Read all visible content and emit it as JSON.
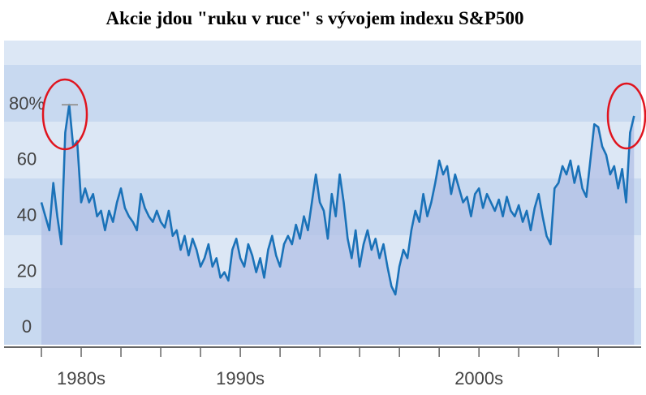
{
  "chart_data": {
    "type": "line",
    "title": "Akcie jdou \"ruku v ruce\" s vývojem indexu S&P500",
    "x": [
      1978,
      1978.2,
      1978.4,
      1978.6,
      1978.8,
      1979,
      1979.2,
      1979.4,
      1979.6,
      1979.8,
      1980,
      1980.2,
      1980.4,
      1980.6,
      1980.8,
      1981,
      1981.2,
      1981.4,
      1981.6,
      1981.8,
      1982,
      1982.2,
      1982.4,
      1982.6,
      1982.8,
      1983,
      1983.2,
      1983.4,
      1983.6,
      1983.8,
      1984,
      1984.2,
      1984.4,
      1984.6,
      1984.8,
      1985,
      1985.2,
      1985.4,
      1985.6,
      1985.8,
      1986,
      1986.2,
      1986.4,
      1986.6,
      1986.8,
      1987,
      1987.2,
      1987.4,
      1987.6,
      1987.8,
      1988,
      1988.2,
      1988.4,
      1988.6,
      1988.8,
      1989,
      1989.2,
      1989.4,
      1989.6,
      1989.8,
      1990,
      1990.2,
      1990.4,
      1990.6,
      1990.8,
      1991,
      1991.2,
      1991.4,
      1991.6,
      1991.8,
      1992,
      1992.2,
      1992.4,
      1992.6,
      1992.8,
      1993,
      1993.2,
      1993.4,
      1993.6,
      1993.8,
      1994,
      1994.2,
      1994.4,
      1994.6,
      1994.8,
      1995,
      1995.2,
      1995.4,
      1995.6,
      1995.8,
      1996,
      1996.2,
      1996.4,
      1996.6,
      1996.8,
      1997,
      1997.2,
      1997.4,
      1997.6,
      1997.8,
      1998,
      1998.2,
      1998.4,
      1998.6,
      1998.8,
      1999,
      1999.2,
      1999.4,
      1999.6,
      1999.8,
      2000,
      2000.2,
      2000.4,
      2000.6,
      2000.8,
      2001,
      2001.2,
      2001.4,
      2001.6,
      2001.8,
      2002,
      2002.2,
      2002.4,
      2002.6,
      2002.8,
      2003,
      2003.2,
      2003.4,
      2003.6,
      2003.8,
      2004,
      2004.2,
      2004.4,
      2004.6,
      2004.8,
      2005,
      2005.2,
      2005.4,
      2005.6,
      2005.8,
      2006,
      2006.2,
      2006.4,
      2006.6,
      2006.8,
      2007,
      2007.2,
      2007.4,
      2007.6,
      2007.8
    ],
    "values": [
      45,
      40,
      35,
      52,
      40,
      30,
      70,
      80,
      65,
      67,
      45,
      50,
      45,
      48,
      40,
      42,
      35,
      42,
      38,
      45,
      50,
      43,
      40,
      38,
      35,
      48,
      43,
      40,
      38,
      42,
      38,
      36,
      42,
      33,
      35,
      28,
      33,
      26,
      32,
      28,
      22,
      25,
      30,
      22,
      25,
      18,
      20,
      17,
      28,
      32,
      25,
      22,
      30,
      26,
      20,
      25,
      18,
      28,
      33,
      26,
      22,
      30,
      33,
      30,
      37,
      32,
      40,
      35,
      45,
      55,
      45,
      42,
      32,
      48,
      40,
      55,
      45,
      32,
      25,
      35,
      22,
      30,
      35,
      28,
      32,
      25,
      30,
      22,
      15,
      12,
      22,
      28,
      25,
      35,
      42,
      38,
      48,
      40,
      45,
      52,
      60,
      55,
      58,
      48,
      55,
      50,
      45,
      47,
      40,
      48,
      50,
      43,
      48,
      45,
      42,
      46,
      40,
      47,
      42,
      40,
      44,
      38,
      42,
      35,
      43,
      48,
      40,
      33,
      30,
      50,
      52,
      58,
      55,
      60,
      52,
      58,
      50,
      47,
      60,
      73,
      72,
      65,
      62,
      55,
      58,
      50,
      57,
      45,
      70,
      76
    ],
    "color": "#1a72b8",
    "area_color": "#b3c0e6",
    "xlim": [
      1976,
      2009.5
    ],
    "ylim": [
      -6,
      103
    ],
    "yticks": [
      0,
      20,
      40,
      60,
      {
        "value": 80,
        "label": "80%"
      }
    ],
    "xticks": [
      {
        "value": 1980,
        "label": "1980s"
      },
      {
        "value": 1988,
        "label": "1990s"
      },
      {
        "value": 2000,
        "label": "2000s"
      }
    ],
    "minor_xticks": [
      1978,
      1980,
      1982,
      1984,
      1986,
      1988,
      1990,
      1992,
      1994,
      1996,
      1998,
      2000,
      2002,
      2004,
      2006
    ]
  }
}
